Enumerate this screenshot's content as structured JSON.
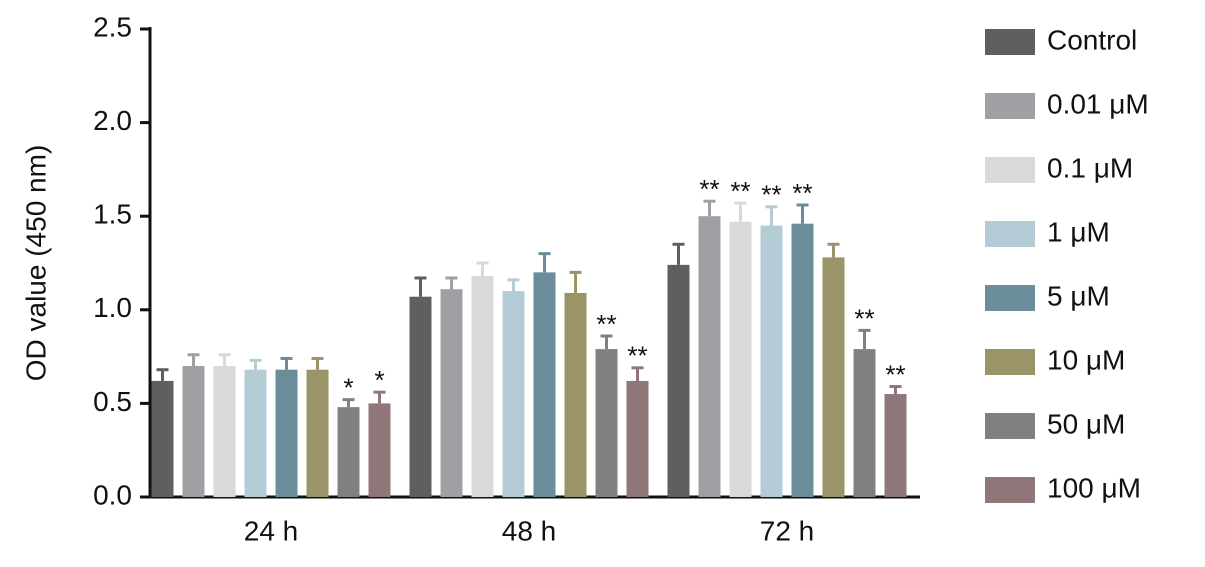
{
  "chart_data": {
    "type": "bar",
    "y_label": "OD value (450 nm)",
    "categories": [
      "24 h",
      "48 h",
      "72 h"
    ],
    "ylim": [
      0,
      2.5
    ],
    "yticks": [
      {
        "value": 0,
        "label": "0.0"
      },
      0.5,
      {
        "value": 1,
        "label": "1.0"
      },
      1.5,
      {
        "value": 2,
        "label": "2.0"
      },
      2.5
    ],
    "legend": "right",
    "series": [
      {
        "name": "Control",
        "color": "#5f5f5f",
        "values": [
          0.62,
          1.07,
          1.24
        ],
        "errors": [
          0.06,
          0.1,
          0.11
        ],
        "annotations": [
          null,
          null,
          null
        ]
      },
      {
        "name": "0.01 μM",
        "color": "#a0a0a4",
        "values": [
          0.7,
          1.11,
          1.5
        ],
        "errors": [
          0.06,
          0.06,
          0.08
        ],
        "annotations": [
          null,
          null,
          "**"
        ]
      },
      {
        "name": "0.1 μM",
        "color": "#d9d9d9",
        "values": [
          0.7,
          1.18,
          1.47
        ],
        "errors": [
          0.06,
          0.07,
          0.1
        ],
        "annotations": [
          null,
          null,
          "**"
        ]
      },
      {
        "name": "1 μM",
        "color": "#b3ccd6",
        "values": [
          0.68,
          1.1,
          1.45
        ],
        "errors": [
          0.05,
          0.06,
          0.1
        ],
        "annotations": [
          null,
          null,
          "**"
        ]
      },
      {
        "name": "5 μM",
        "color": "#6b8c99",
        "values": [
          0.68,
          1.2,
          1.46
        ],
        "errors": [
          0.06,
          0.1,
          0.1
        ],
        "annotations": [
          null,
          null,
          "**"
        ]
      },
      {
        "name": "10 μM",
        "color": "#9b9468",
        "values": [
          0.68,
          1.09,
          1.28
        ],
        "errors": [
          0.06,
          0.11,
          0.07
        ],
        "annotations": [
          null,
          null,
          null
        ]
      },
      {
        "name": "50 μM",
        "color": "#808080",
        "values": [
          0.48,
          0.79,
          0.79
        ],
        "errors": [
          0.04,
          0.07,
          0.1
        ],
        "annotations": [
          "*",
          "**",
          "**"
        ]
      },
      {
        "name": "100 μM",
        "color": "#8f7679",
        "values": [
          0.5,
          0.62,
          0.55
        ],
        "errors": [
          0.06,
          0.07,
          0.04
        ],
        "annotations": [
          "*",
          "**",
          "**"
        ]
      }
    ]
  }
}
